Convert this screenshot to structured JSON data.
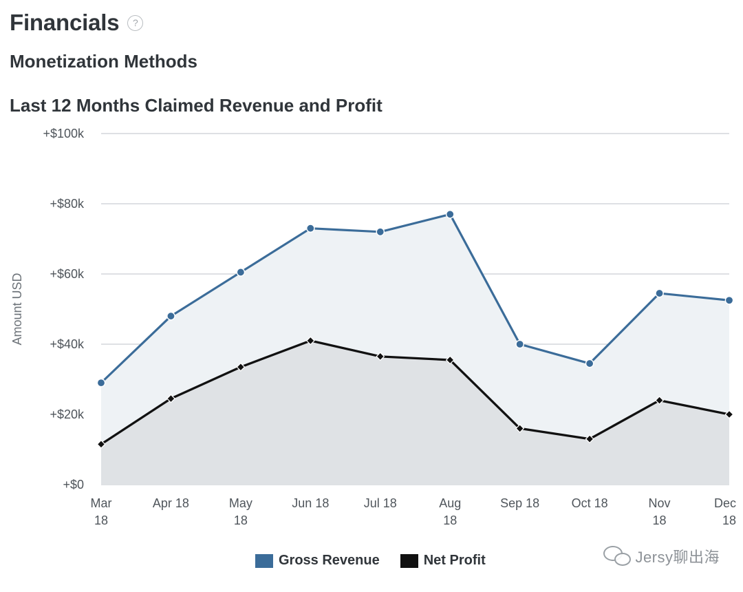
{
  "header": {
    "title": "Financials",
    "help_icon": "help-icon"
  },
  "section": {
    "title": "Monetization Methods"
  },
  "chart_title": "Last 12 Months Claimed Revenue and Profit",
  "chart_data": {
    "type": "area",
    "title": "Last 12 Months Claimed Revenue and Profit",
    "xlabel": "",
    "ylabel": "Amount USD",
    "categories": [
      "Mar 18",
      "Apr 18",
      "May 18",
      "Jun 18",
      "Jul 18",
      "Aug 18",
      "Sep 18",
      "Oct 18",
      "Nov 18",
      "Dec 18"
    ],
    "x_tick_labels": [
      [
        "Mar",
        "18"
      ],
      [
        "Apr 18"
      ],
      [
        "May",
        "18"
      ],
      [
        "Jun 18"
      ],
      [
        "Jul 18"
      ],
      [
        "Aug",
        "18"
      ],
      [
        "Sep 18"
      ],
      [
        "Oct 18"
      ],
      [
        "Nov",
        "18"
      ],
      [
        "Dec",
        "18"
      ]
    ],
    "y_ticks": [
      0,
      20000,
      40000,
      60000,
      80000,
      100000
    ],
    "y_tick_labels": [
      "+$0",
      "+$20k",
      "+$40k",
      "+$60k",
      "+$80k",
      "+$100k"
    ],
    "ylim": [
      0,
      100000
    ],
    "grid": true,
    "legend_position": "bottom",
    "series": [
      {
        "name": "Gross Revenue",
        "color": "#3b6c99",
        "fill": "#eef2f5",
        "marker": "circle",
        "values": [
          29000,
          48000,
          60500,
          73000,
          72000,
          77000,
          40000,
          34500,
          54500,
          52500
        ]
      },
      {
        "name": "Net Profit",
        "color": "#111111",
        "fill": "#dfe2e5",
        "marker": "diamond",
        "values": [
          11500,
          24500,
          33500,
          41000,
          36500,
          35500,
          16000,
          13000,
          24000,
          20000
        ]
      }
    ]
  },
  "legend": {
    "items": [
      {
        "label": "Gross Revenue",
        "color": "#3b6c99"
      },
      {
        "label": "Net Profit",
        "color": "#111111"
      }
    ]
  },
  "watermark": {
    "text": "Jersy聊出海",
    "icon": "wechat-icon"
  }
}
